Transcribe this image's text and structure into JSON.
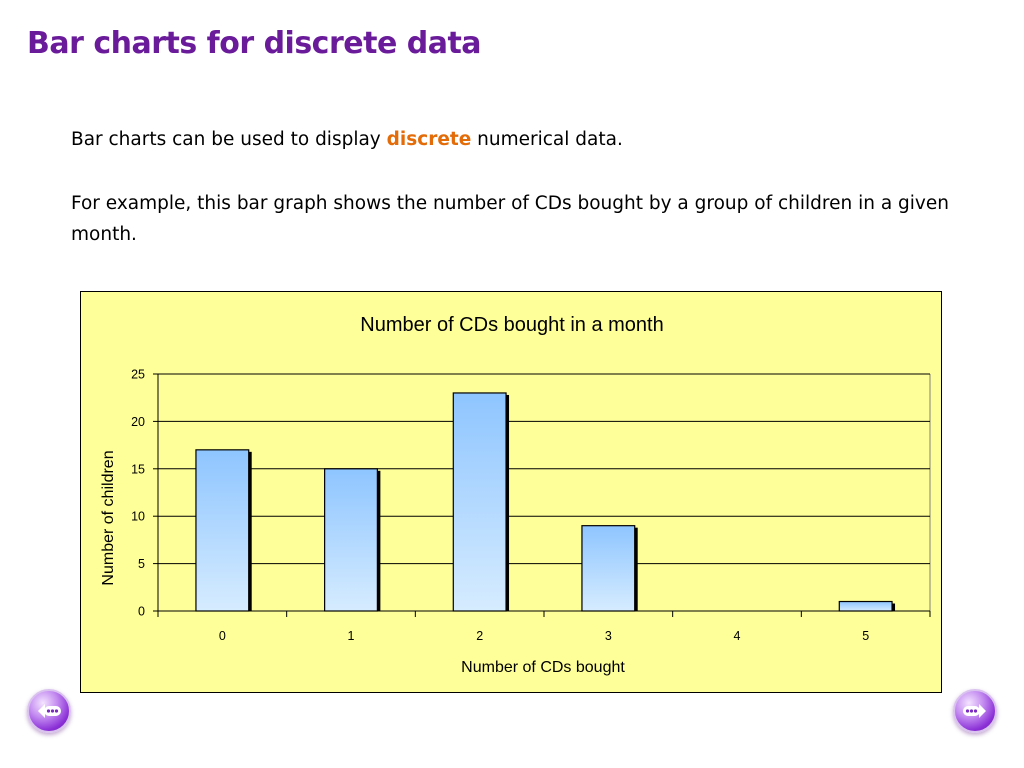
{
  "slide": {
    "title": "Bar charts for discrete data",
    "para1_before": "Bar charts can be used to display ",
    "para1_highlight": "discrete",
    "para1_after": " numerical data.",
    "para2": "For example, this bar graph shows the number of CDs bought by a group of children in a given month."
  },
  "colors": {
    "title": "#6a1b9a",
    "highlight": "#e36c09",
    "chart_background": "#ffff99",
    "bar_top": "#8ec5ff",
    "bar_bottom": "#d6ecff",
    "bar_border": "#000000"
  },
  "icons": {
    "previous": "previous-slide-icon",
    "next": "next-slide-icon"
  },
  "chart_data": {
    "type": "bar",
    "title": "Number of CDs bought in a month",
    "xlabel": "Number of CDs bought",
    "ylabel": "Number of children",
    "categories": [
      "0",
      "1",
      "2",
      "3",
      "4",
      "5"
    ],
    "values": [
      17,
      15,
      23,
      9,
      0,
      1
    ],
    "ylim": [
      0,
      25
    ],
    "yticks": [
      0,
      5,
      10,
      15,
      20,
      25
    ],
    "grid": true,
    "legend": "none"
  }
}
